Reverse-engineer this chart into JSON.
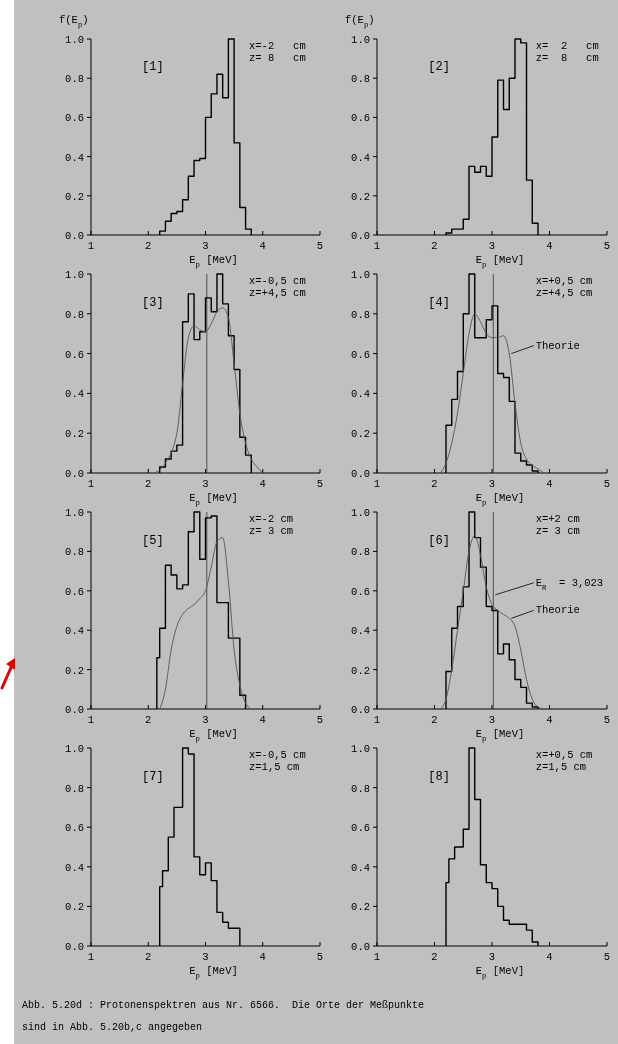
{
  "chart_data": [
    {
      "type": "histogram",
      "title": "[1]",
      "ylabel": "f(E$_{p}$)",
      "xlabel": "E$_{p}$ [MeV]",
      "xlim": [
        1,
        5
      ],
      "ylim": [
        0,
        1
      ],
      "xticks": [
        1,
        2,
        3,
        4,
        5
      ],
      "yticks": [
        {
          "value": 0,
          "label": "0.0"
        },
        {
          "value": 0.2,
          "label": "0.2"
        },
        {
          "value": 0.4,
          "label": "0.4"
        },
        {
          "value": 0.6,
          "label": "0.6"
        },
        {
          "value": 0.8,
          "label": "0.8"
        },
        {
          "value": 1,
          "label": "1.0"
        }
      ],
      "annotations": [
        "x=-2   cm",
        "z= 8   cm"
      ],
      "color": "#000000",
      "bins": [
        2.2,
        2.3,
        2.4,
        2.5,
        2.6,
        2.7,
        2.8,
        2.9,
        3.0,
        3.1,
        3.2,
        3.3,
        3.4,
        3.5,
        3.6,
        3.7,
        3.8
      ],
      "values": [
        0.02,
        0.07,
        0.11,
        0.12,
        0.18,
        0.3,
        0.38,
        0.39,
        0.6,
        0.72,
        0.82,
        0.7,
        1.0,
        0.47,
        0.14,
        0.03
      ]
    },
    {
      "type": "histogram",
      "title": "[2]",
      "ylabel": "f(E$_{p}$)",
      "xlabel": "E$_{p}$ [MeV]",
      "xlim": [
        1,
        5
      ],
      "ylim": [
        0,
        1
      ],
      "xticks": [
        1,
        2,
        3,
        4,
        5
      ],
      "yticks": [
        {
          "value": 0,
          "label": "0.0"
        },
        {
          "value": 0.2,
          "label": "0.2"
        },
        {
          "value": 0.4,
          "label": "0.4"
        },
        {
          "value": 0.6,
          "label": "0.6"
        },
        {
          "value": 0.8,
          "label": "0.8"
        },
        {
          "value": 1,
          "label": "1.0"
        }
      ],
      "annotations": [
        "x=  2   cm",
        "z=  8   cm"
      ],
      "color": "#000000",
      "bins": [
        2.2,
        2.3,
        2.4,
        2.5,
        2.6,
        2.7,
        2.8,
        2.9,
        3.0,
        3.1,
        3.2,
        3.3,
        3.4,
        3.5,
        3.6,
        3.7,
        3.8
      ],
      "values": [
        0.01,
        0.03,
        0.03,
        0.08,
        0.35,
        0.32,
        0.35,
        0.3,
        0.5,
        0.79,
        0.64,
        0.8,
        1.0,
        0.98,
        0.28,
        0.06
      ]
    },
    {
      "type": "histogram",
      "title": "[3]",
      "xlabel": "E$_{p}$ [MeV]",
      "xlim": [
        1,
        5
      ],
      "ylim": [
        0,
        1
      ],
      "xticks": [
        1,
        2,
        3,
        4,
        5
      ],
      "yticks": [
        {
          "value": 0,
          "label": "0.0"
        },
        {
          "value": 0.2,
          "label": "0.2"
        },
        {
          "value": 0.4,
          "label": "0.4"
        },
        {
          "value": 0.6,
          "label": "0.6"
        },
        {
          "value": 0.8,
          "label": "0.8"
        },
        {
          "value": 1,
          "label": "1.0"
        }
      ],
      "annotations": [
        "x=-0,5 cm",
        "z=+4,5 cm"
      ],
      "ref_lines": [
        {
          "axis": "x",
          "value": 3.023,
          "color": "#333333"
        }
      ],
      "series": [
        {
          "color": "#000000",
          "bins": [
            2.2,
            2.3,
            2.4,
            2.5,
            2.6,
            2.7,
            2.8,
            2.9,
            3.0,
            3.1,
            3.2,
            3.3,
            3.4,
            3.5,
            3.6,
            3.7,
            3.8
          ],
          "values": [
            0.03,
            0.07,
            0.11,
            0.14,
            0.76,
            0.9,
            0.67,
            0.71,
            0.88,
            0.81,
            1.0,
            0.85,
            0.69,
            0.52,
            0.18,
            0.09
          ]
        },
        {
          "type": "line",
          "color": "#555555",
          "x": [
            2.1,
            2.3,
            2.5,
            2.6,
            2.7,
            2.8,
            2.9,
            3.0,
            3.1,
            3.2,
            3.3,
            3.4,
            3.5,
            3.6,
            3.7,
            3.8,
            3.9,
            4.0
          ],
          "values": [
            0,
            0.05,
            0.2,
            0.45,
            0.68,
            0.74,
            0.72,
            0.71,
            0.75,
            0.81,
            0.83,
            0.78,
            0.55,
            0.3,
            0.15,
            0.07,
            0.03,
            0
          ]
        }
      ]
    },
    {
      "type": "histogram",
      "title": "[4]",
      "xlabel": "E$_{p}$ [MeV]",
      "xlim": [
        1,
        5
      ],
      "ylim": [
        0,
        1
      ],
      "xticks": [
        1,
        2,
        3,
        4,
        5
      ],
      "yticks": [
        {
          "value": 0,
          "label": "0.0"
        },
        {
          "value": 0.2,
          "label": "0.2"
        },
        {
          "value": 0.4,
          "label": "0.4"
        },
        {
          "value": 0.6,
          "label": "0.6"
        },
        {
          "value": 0.8,
          "label": "0.8"
        },
        {
          "value": 1,
          "label": "1.0"
        }
      ],
      "annotations": [
        "x=+0,5 cm",
        "z=+4,5 cm"
      ],
      "ref_lines": [
        {
          "axis": "x",
          "value": 3.023,
          "color": "#333333"
        }
      ],
      "series": [
        {
          "color": "#000000",
          "bins": [
            2.2,
            2.3,
            2.4,
            2.5,
            2.6,
            2.7,
            2.8,
            2.9,
            3.0,
            3.1,
            3.2,
            3.3,
            3.4,
            3.5,
            3.6,
            3.7,
            3.8
          ],
          "values": [
            0.24,
            0.37,
            0.51,
            0.8,
            1.0,
            0.68,
            0.68,
            0.77,
            0.84,
            0.5,
            0.48,
            0.36,
            0.1,
            0.06,
            0.04,
            0.01
          ]
        },
        {
          "type": "line",
          "name": "Theorie",
          "color": "#555555",
          "x": [
            2.1,
            2.2,
            2.4,
            2.5,
            2.6,
            2.7,
            2.8,
            2.9,
            3.0,
            3.1,
            3.2,
            3.3,
            3.4,
            3.5,
            3.6,
            3.8,
            3.9
          ],
          "values": [
            0,
            0.05,
            0.3,
            0.5,
            0.7,
            0.8,
            0.76,
            0.7,
            0.68,
            0.68,
            0.69,
            0.6,
            0.35,
            0.15,
            0.07,
            0.02,
            0
          ]
        }
      ]
    },
    {
      "type": "histogram",
      "title": "[5]",
      "xlabel": "E$_{p}$ [MeV]",
      "xlim": [
        1,
        5
      ],
      "ylim": [
        0,
        1
      ],
      "xticks": [
        1,
        2,
        3,
        4,
        5
      ],
      "yticks": [
        {
          "value": 0,
          "label": "0.0"
        },
        {
          "value": 0.2,
          "label": "0.2"
        },
        {
          "value": 0.4,
          "label": "0.4"
        },
        {
          "value": 0.6,
          "label": "0.6"
        },
        {
          "value": 0.8,
          "label": "0.8"
        },
        {
          "value": 1,
          "label": "1.0"
        }
      ],
      "annotations": [
        "x=-2 cm",
        "z= 3 cm"
      ],
      "ref_lines": [
        {
          "axis": "x",
          "value": 3.023,
          "color": "#333333"
        }
      ],
      "series": [
        {
          "color": "#000000",
          "bins": [
            2.15,
            2.2,
            2.3,
            2.4,
            2.5,
            2.6,
            2.7,
            2.8,
            2.9,
            3.0,
            3.1,
            3.2,
            3.3,
            3.4,
            3.5,
            3.6,
            3.7
          ],
          "values": [
            0.26,
            0.41,
            0.73,
            0.68,
            0.61,
            0.63,
            0.9,
            1.0,
            0.76,
            0.97,
            0.98,
            0.54,
            0.54,
            0.36,
            0.36,
            0.07
          ]
        },
        {
          "type": "line",
          "color": "#555555",
          "x": [
            2.2,
            2.3,
            2.4,
            2.5,
            2.6,
            2.7,
            2.8,
            2.9,
            3.0,
            3.1,
            3.2,
            3.3,
            3.4,
            3.5,
            3.6,
            3.7,
            3.8
          ],
          "values": [
            0,
            0.1,
            0.3,
            0.42,
            0.48,
            0.51,
            0.53,
            0.56,
            0.6,
            0.72,
            0.85,
            0.87,
            0.65,
            0.3,
            0.12,
            0.03,
            0
          ]
        }
      ]
    },
    {
      "type": "histogram",
      "title": "[6]",
      "xlabel": "E$_{p}$ [MeV]",
      "xlim": [
        1,
        5
      ],
      "ylim": [
        0,
        1
      ],
      "xticks": [
        1,
        2,
        3,
        4,
        5
      ],
      "yticks": [
        {
          "value": 0,
          "label": "0.0"
        },
        {
          "value": 0.2,
          "label": "0.2"
        },
        {
          "value": 0.4,
          "label": "0.4"
        },
        {
          "value": 0.6,
          "label": "0.6"
        },
        {
          "value": 0.8,
          "label": "0.8"
        },
        {
          "value": 1,
          "label": "1.0"
        }
      ],
      "annotations": [
        "x=+2 cm",
        "z= 3 cm"
      ],
      "ref_lines": [
        {
          "axis": "x",
          "value": 3.023,
          "label": "E$_{R}$  = 3,023",
          "color": "#333333"
        }
      ],
      "series": [
        {
          "color": "#000000",
          "bins": [
            2.2,
            2.3,
            2.4,
            2.5,
            2.6,
            2.7,
            2.8,
            2.9,
            3.0,
            3.1,
            3.2,
            3.3,
            3.4,
            3.5,
            3.6,
            3.7,
            3.8
          ],
          "values": [
            0.19,
            0.41,
            0.52,
            0.62,
            1.0,
            0.87,
            0.72,
            0.52,
            0.5,
            0.28,
            0.33,
            0.25,
            0.15,
            0.11,
            0.03,
            0.01
          ]
        },
        {
          "type": "line",
          "name": "Theorie",
          "color": "#555555",
          "x": [
            2.1,
            2.2,
            2.3,
            2.4,
            2.5,
            2.6,
            2.7,
            2.8,
            2.9,
            3.0,
            3.1,
            3.2,
            3.3,
            3.4,
            3.5,
            3.6,
            3.7,
            3.8,
            3.9
          ],
          "values": [
            0,
            0.05,
            0.2,
            0.4,
            0.6,
            0.8,
            0.88,
            0.78,
            0.62,
            0.53,
            0.5,
            0.48,
            0.46,
            0.42,
            0.3,
            0.15,
            0.05,
            0.01,
            0
          ]
        }
      ]
    },
    {
      "type": "histogram",
      "title": "[7]",
      "xlabel": "E$_{p}$ [MeV]",
      "xlim": [
        1,
        5
      ],
      "ylim": [
        0,
        1
      ],
      "xticks": [
        1,
        2,
        3,
        4,
        5
      ],
      "yticks": [
        {
          "value": 0,
          "label": "0.0"
        },
        {
          "value": 0.2,
          "label": "0.2"
        },
        {
          "value": 0.4,
          "label": "0.4"
        },
        {
          "value": 0.6,
          "label": "0.6"
        },
        {
          "value": 0.8,
          "label": "0.8"
        },
        {
          "value": 1,
          "label": "1.0"
        }
      ],
      "annotations": [
        "x=-0,5 cm",
        "z=1,5 cm"
      ],
      "color": "#000000",
      "bins": [
        2.2,
        2.25,
        2.35,
        2.45,
        2.6,
        2.7,
        2.8,
        2.9,
        3.0,
        3.1,
        3.2,
        3.3,
        3.4,
        3.5,
        3.6
      ],
      "values": [
        0.3,
        0.38,
        0.55,
        0.7,
        1.0,
        0.97,
        0.45,
        0.36,
        0.42,
        0.33,
        0.17,
        0.12,
        0.09,
        0.09
      ]
    },
    {
      "type": "histogram",
      "title": "[8]",
      "xlabel": "E$_{p}$ [MeV]",
      "xlim": [
        1,
        5
      ],
      "ylim": [
        0,
        1
      ],
      "xticks": [
        1,
        2,
        3,
        4,
        5
      ],
      "yticks": [
        {
          "value": 0,
          "label": "0.0"
        },
        {
          "value": 0.2,
          "label": "0.2"
        },
        {
          "value": 0.4,
          "label": "0.4"
        },
        {
          "value": 0.6,
          "label": "0.6"
        },
        {
          "value": 0.8,
          "label": "0.8"
        },
        {
          "value": 1,
          "label": "1.0"
        }
      ],
      "annotations": [
        "x=+0,5 cm",
        "z=1,5 cm",
        "Abb. 5.20d : Protonenspektren aus Nr. 6566.  Die Orte der Meßpunkte",
        "sind in Abb. 5.20b,c angegeben"
      ],
      "color": "#000000",
      "bins": [
        2.2,
        2.25,
        2.35,
        2.5,
        2.6,
        2.7,
        2.8,
        2.9,
        3.0,
        3.1,
        3.2,
        3.3,
        3.4,
        3.5,
        3.6,
        3.7,
        3.8
      ],
      "values": [
        0.32,
        0.44,
        0.5,
        0.59,
        1.0,
        0.74,
        0.41,
        0.32,
        0.29,
        0.2,
        0.13,
        0.11,
        0.11,
        0.11,
        0.08,
        0.02
      ]
    }
  ]
}
